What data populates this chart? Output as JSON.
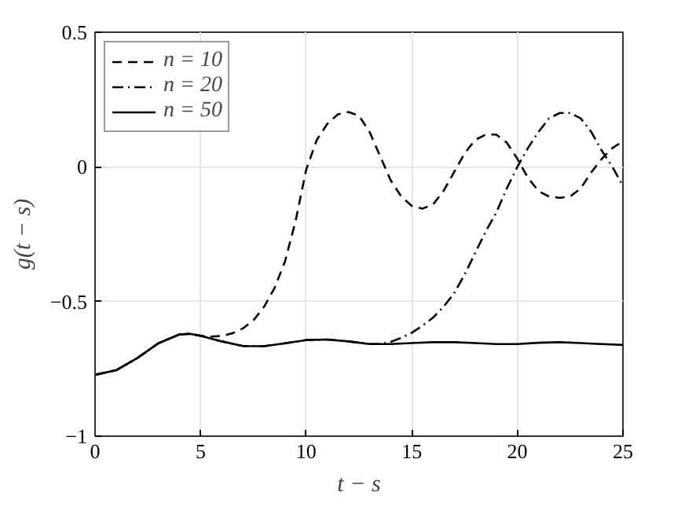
{
  "chart_data": {
    "type": "line",
    "xlabel": "t − s",
    "ylabel": "g(t − s)",
    "xlim": [
      0,
      25
    ],
    "ylim": [
      -1,
      0.5
    ],
    "xticks": [
      0,
      5,
      10,
      15,
      20,
      25
    ],
    "yticks": [
      -1,
      -0.5,
      0,
      0.5
    ],
    "grid": true,
    "legend": "top left",
    "marker": "none",
    "series": [
      {
        "name": "n = 10",
        "color": "#000000",
        "line_style": "dashed",
        "x": [
          0,
          1,
          2,
          3,
          4,
          4.5,
          5,
          5.5,
          6,
          6.5,
          7,
          7.5,
          8,
          8.5,
          9,
          9.5,
          10,
          10.5,
          11,
          11.5,
          12,
          12.5,
          13,
          13.5,
          14,
          14.5,
          15,
          15.5,
          16,
          16.5,
          17,
          17.5,
          18,
          18.5,
          19,
          19.5,
          20,
          20.5,
          21,
          21.5,
          22,
          22.5,
          23,
          23.5,
          24,
          24.5,
          25
        ],
        "values": [
          -0.772,
          -0.755,
          -0.71,
          -0.655,
          -0.622,
          -0.62,
          -0.627,
          -0.63,
          -0.628,
          -0.618,
          -0.6,
          -0.57,
          -0.52,
          -0.45,
          -0.35,
          -0.2,
          -0.01,
          0.1,
          0.16,
          0.195,
          0.204,
          0.19,
          0.13,
          0.04,
          -0.05,
          -0.11,
          -0.145,
          -0.155,
          -0.14,
          -0.09,
          -0.02,
          0.05,
          0.1,
          0.12,
          0.12,
          0.09,
          0.03,
          -0.04,
          -0.09,
          -0.11,
          -0.115,
          -0.11,
          -0.08,
          -0.02,
          0.03,
          0.07,
          0.095
        ]
      },
      {
        "name": "n = 20",
        "color": "#000000",
        "line_style": "dashdot",
        "x": [
          0,
          1,
          2,
          3,
          4,
          4.5,
          5,
          6,
          7,
          8,
          9,
          10,
          11,
          12,
          13,
          13.5,
          14,
          14.5,
          15,
          15.5,
          16,
          16.5,
          17,
          17.5,
          18,
          18.5,
          19,
          19.5,
          20,
          20.5,
          21,
          21.5,
          22,
          22.5,
          23,
          23.5,
          24,
          24.5,
          25
        ],
        "values": [
          -0.772,
          -0.755,
          -0.71,
          -0.655,
          -0.622,
          -0.62,
          -0.627,
          -0.648,
          -0.665,
          -0.666,
          -0.655,
          -0.643,
          -0.641,
          -0.648,
          -0.658,
          -0.658,
          -0.65,
          -0.635,
          -0.616,
          -0.59,
          -0.56,
          -0.52,
          -0.47,
          -0.4,
          -0.32,
          -0.24,
          -0.17,
          -0.08,
          0.0,
          0.07,
          0.13,
          0.18,
          0.2,
          0.2,
          0.18,
          0.13,
          0.06,
          0.0,
          -0.07
        ]
      },
      {
        "name": "n = 50",
        "color": "#000000",
        "line_style": "solid",
        "x": [
          0,
          1,
          2,
          3,
          4,
          4.5,
          5,
          6,
          7,
          8,
          9,
          10,
          11,
          12,
          13,
          14,
          15,
          16,
          17,
          18,
          19,
          20,
          21,
          22,
          23,
          24,
          25
        ],
        "values": [
          -0.772,
          -0.755,
          -0.71,
          -0.655,
          -0.622,
          -0.62,
          -0.627,
          -0.648,
          -0.665,
          -0.666,
          -0.655,
          -0.643,
          -0.641,
          -0.648,
          -0.658,
          -0.658,
          -0.654,
          -0.651,
          -0.651,
          -0.654,
          -0.658,
          -0.658,
          -0.653,
          -0.651,
          -0.654,
          -0.658,
          -0.661
        ]
      }
    ]
  }
}
